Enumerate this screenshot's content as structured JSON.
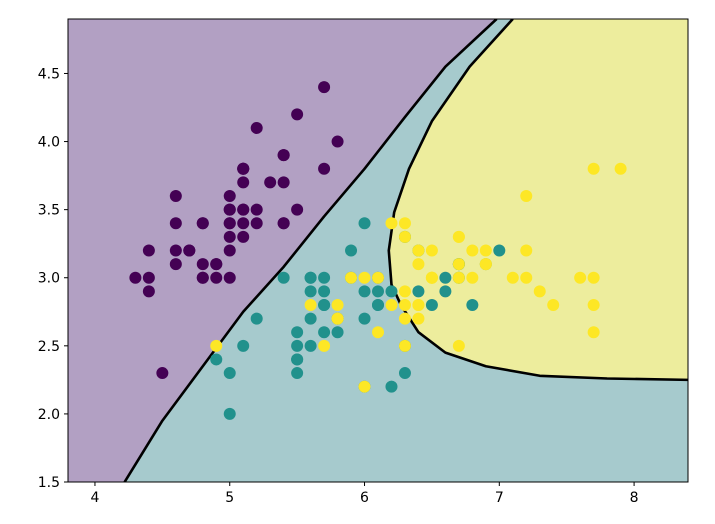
{
  "chart_data": {
    "type": "scatter",
    "title": "",
    "xlabel": "",
    "ylabel": "",
    "xlim": [
      3.8,
      8.4
    ],
    "ylim": [
      1.5,
      4.9
    ],
    "grid": false,
    "legend": "none",
    "xticks": [
      {
        "value": 4,
        "label": "4"
      },
      {
        "value": 5,
        "label": "5"
      },
      {
        "value": 6,
        "label": "6"
      },
      {
        "value": 7,
        "label": "7"
      },
      {
        "value": 8,
        "label": "8"
      }
    ],
    "yticks": [
      {
        "value": 1.5,
        "label": "1.5"
      },
      {
        "value": 2.0,
        "label": "2.0"
      },
      {
        "value": 2.5,
        "label": "2.5"
      },
      {
        "value": 3.0,
        "label": "3.0"
      },
      {
        "value": 3.5,
        "label": "3.5"
      },
      {
        "value": 4.0,
        "label": "4.0"
      },
      {
        "value": 4.5,
        "label": "4.5"
      }
    ],
    "regions": [
      {
        "class": 0,
        "color": "#b2a0c3"
      },
      {
        "class": 1,
        "color": "#a6cacd"
      },
      {
        "class": 2,
        "color": "#eded9d"
      }
    ],
    "boundaries": [
      {
        "between": [
          0,
          1
        ],
        "points": [
          [
            4.22,
            1.5
          ],
          [
            4.5,
            1.95
          ],
          [
            4.8,
            2.35
          ],
          [
            5.1,
            2.75
          ],
          [
            5.4,
            3.08
          ],
          [
            5.7,
            3.45
          ],
          [
            6.0,
            3.8
          ],
          [
            6.3,
            4.18
          ],
          [
            6.6,
            4.55
          ],
          [
            6.98,
            4.9
          ]
        ]
      },
      {
        "between": [
          1,
          2
        ],
        "points": [
          [
            7.1,
            4.9
          ],
          [
            6.78,
            4.55
          ],
          [
            6.5,
            4.15
          ],
          [
            6.33,
            3.8
          ],
          [
            6.22,
            3.48
          ],
          [
            6.18,
            3.2
          ],
          [
            6.2,
            2.95
          ],
          [
            6.27,
            2.8
          ],
          [
            6.4,
            2.6
          ],
          [
            6.6,
            2.45
          ],
          [
            6.9,
            2.35
          ],
          [
            7.3,
            2.28
          ],
          [
            7.8,
            2.26
          ],
          [
            8.4,
            2.25
          ]
        ]
      }
    ],
    "series": [
      {
        "class": 0,
        "color": "#440154",
        "points": [
          [
            5.1,
            3.5
          ],
          [
            4.9,
            3.0
          ],
          [
            4.7,
            3.2
          ],
          [
            4.6,
            3.1
          ],
          [
            5.0,
            3.6
          ],
          [
            5.4,
            3.9
          ],
          [
            4.6,
            3.4
          ],
          [
            5.0,
            3.4
          ],
          [
            4.4,
            2.9
          ],
          [
            4.9,
            3.1
          ],
          [
            5.4,
            3.7
          ],
          [
            4.8,
            3.4
          ],
          [
            4.8,
            3.0
          ],
          [
            4.3,
            3.0
          ],
          [
            5.8,
            4.0
          ],
          [
            5.7,
            4.4
          ],
          [
            5.4,
            3.9
          ],
          [
            5.1,
            3.5
          ],
          [
            5.7,
            3.8
          ],
          [
            5.1,
            3.8
          ],
          [
            5.4,
            3.4
          ],
          [
            5.1,
            3.7
          ],
          [
            4.6,
            3.6
          ],
          [
            5.1,
            3.3
          ],
          [
            4.8,
            3.4
          ],
          [
            5.0,
            3.0
          ],
          [
            5.0,
            3.4
          ],
          [
            5.2,
            3.5
          ],
          [
            5.2,
            3.4
          ],
          [
            4.7,
            3.2
          ],
          [
            4.8,
            3.1
          ],
          [
            5.4,
            3.4
          ],
          [
            5.2,
            4.1
          ],
          [
            5.5,
            4.2
          ],
          [
            4.9,
            3.1
          ],
          [
            5.0,
            3.2
          ],
          [
            5.5,
            3.5
          ],
          [
            4.4,
            3.0
          ],
          [
            5.1,
            3.4
          ],
          [
            5.0,
            3.5
          ],
          [
            4.5,
            2.3
          ],
          [
            4.4,
            3.2
          ],
          [
            5.0,
            3.5
          ],
          [
            5.1,
            3.8
          ],
          [
            4.8,
            3.0
          ],
          [
            5.1,
            3.8
          ],
          [
            4.6,
            3.2
          ],
          [
            5.3,
            3.7
          ],
          [
            5.0,
            3.3
          ]
        ]
      },
      {
        "class": 1,
        "color": "#21918c",
        "points": [
          [
            7.0,
            3.2
          ],
          [
            6.4,
            3.2
          ],
          [
            6.9,
            3.1
          ],
          [
            5.5,
            2.3
          ],
          [
            6.5,
            2.8
          ],
          [
            5.7,
            2.8
          ],
          [
            6.3,
            3.3
          ],
          [
            4.9,
            2.4
          ],
          [
            6.6,
            2.9
          ],
          [
            5.2,
            2.7
          ],
          [
            5.0,
            2.0
          ],
          [
            5.9,
            3.0
          ],
          [
            6.0,
            2.2
          ],
          [
            6.1,
            2.9
          ],
          [
            5.6,
            2.9
          ],
          [
            6.7,
            3.1
          ],
          [
            5.6,
            3.0
          ],
          [
            5.8,
            2.7
          ],
          [
            6.2,
            2.2
          ],
          [
            5.6,
            2.5
          ],
          [
            5.9,
            3.2
          ],
          [
            6.1,
            2.8
          ],
          [
            6.3,
            2.5
          ],
          [
            6.1,
            2.8
          ],
          [
            6.4,
            2.9
          ],
          [
            6.6,
            3.0
          ],
          [
            6.8,
            2.8
          ],
          [
            6.7,
            3.0
          ],
          [
            6.0,
            2.9
          ],
          [
            5.7,
            2.6
          ],
          [
            5.5,
            2.4
          ],
          [
            5.5,
            2.4
          ],
          [
            5.8,
            2.7
          ],
          [
            6.0,
            2.7
          ],
          [
            5.4,
            3.0
          ],
          [
            6.0,
            3.4
          ],
          [
            6.7,
            3.1
          ],
          [
            6.3,
            2.3
          ],
          [
            5.6,
            3.0
          ],
          [
            5.5,
            2.5
          ],
          [
            5.5,
            2.6
          ],
          [
            6.1,
            3.0
          ],
          [
            5.8,
            2.6
          ],
          [
            5.0,
            2.3
          ],
          [
            5.6,
            2.7
          ],
          [
            5.7,
            3.0
          ],
          [
            5.7,
            2.9
          ],
          [
            6.2,
            2.9
          ],
          [
            5.1,
            2.5
          ],
          [
            5.7,
            2.8
          ]
        ]
      },
      {
        "class": 2,
        "color": "#fde725",
        "points": [
          [
            6.3,
            3.3
          ],
          [
            5.8,
            2.7
          ],
          [
            7.1,
            3.0
          ],
          [
            6.3,
            2.9
          ],
          [
            6.5,
            3.0
          ],
          [
            7.6,
            3.0
          ],
          [
            4.9,
            2.5
          ],
          [
            7.3,
            2.9
          ],
          [
            6.7,
            2.5
          ],
          [
            7.2,
            3.6
          ],
          [
            6.5,
            3.2
          ],
          [
            6.4,
            2.7
          ],
          [
            6.8,
            3.0
          ],
          [
            5.7,
            2.5
          ],
          [
            5.8,
            2.8
          ],
          [
            6.4,
            3.2
          ],
          [
            6.5,
            3.0
          ],
          [
            7.7,
            3.8
          ],
          [
            7.7,
            2.6
          ],
          [
            6.0,
            2.2
          ],
          [
            6.9,
            3.2
          ],
          [
            5.6,
            2.8
          ],
          [
            7.7,
            2.8
          ],
          [
            6.3,
            2.7
          ],
          [
            6.7,
            3.3
          ],
          [
            7.2,
            3.2
          ],
          [
            6.2,
            2.8
          ],
          [
            6.1,
            3.0
          ],
          [
            6.4,
            2.8
          ],
          [
            7.2,
            3.0
          ],
          [
            7.4,
            2.8
          ],
          [
            7.9,
            3.8
          ],
          [
            6.4,
            2.8
          ],
          [
            6.3,
            2.8
          ],
          [
            6.1,
            2.6
          ],
          [
            7.7,
            3.0
          ],
          [
            6.3,
            3.4
          ],
          [
            6.4,
            3.1
          ],
          [
            6.0,
            3.0
          ],
          [
            6.9,
            3.1
          ],
          [
            6.7,
            3.1
          ],
          [
            6.9,
            3.1
          ],
          [
            5.8,
            2.7
          ],
          [
            6.8,
            3.2
          ],
          [
            6.7,
            3.3
          ],
          [
            6.7,
            3.0
          ],
          [
            6.3,
            2.5
          ],
          [
            6.5,
            3.0
          ],
          [
            6.2,
            3.4
          ],
          [
            5.9,
            3.0
          ]
        ]
      }
    ]
  }
}
